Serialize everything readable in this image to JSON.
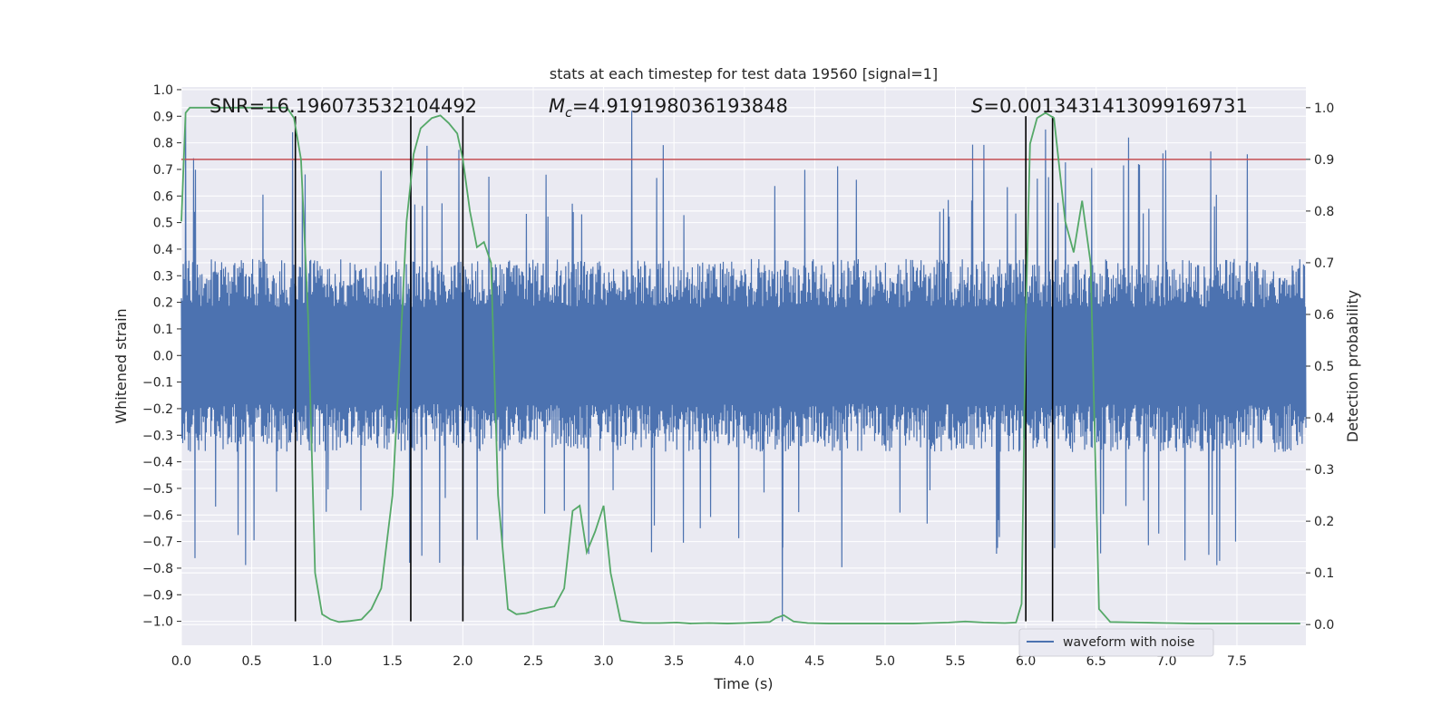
{
  "chart_data": {
    "type": "line",
    "title": "stats at each timestep for test data 19560 [signal=1]",
    "xlabel": "Time (s)",
    "ylabel_left": "Whitened strain",
    "ylabel_right": "Detection probability",
    "xlim": [
      0.0,
      7.99
    ],
    "ylim_left": [
      -1.09,
      1.01
    ],
    "ylim_right": [
      -0.04,
      1.04
    ],
    "x_ticks": [
      "0.0",
      "0.5",
      "1.0",
      "1.5",
      "2.0",
      "2.5",
      "3.0",
      "3.5",
      "4.0",
      "4.5",
      "5.0",
      "5.5",
      "6.0",
      "6.5",
      "7.0",
      "7.5"
    ],
    "y_left_ticks": [
      "1.0",
      "0.9",
      "0.8",
      "0.7",
      "0.6",
      "0.5",
      "0.4",
      "0.3",
      "0.2",
      "0.1",
      "0.0",
      "−0.1",
      "−0.2",
      "−0.3",
      "−0.4",
      "−0.5",
      "−0.6",
      "−0.7",
      "−0.8",
      "−0.9",
      "−1.0"
    ],
    "y_right_ticks": [
      "1.0",
      "0.9",
      "0.8",
      "0.7",
      "0.6",
      "0.5",
      "0.4",
      "0.3",
      "0.2",
      "0.1",
      "0.0"
    ],
    "grid": true,
    "legend": {
      "position": "bottom-right",
      "entries": [
        "waveform with noise"
      ]
    },
    "annotations": {
      "snr": "SNR=16.196073532104492",
      "mc_symbol": "M",
      "mc_sub": "c",
      "mc_value": "=4.919198036193848",
      "s_symbol": "S",
      "s_value": "=0.0013431413099169731"
    },
    "threshold": 0.9,
    "vlines": [
      0.81,
      1.63,
      2.0,
      6.0,
      6.19
    ],
    "vline_ymin": -1.0,
    "vline_ymax": 0.9,
    "waveform": {
      "name": "waveform with noise",
      "samples_approx": 2400,
      "typical_abs": 0.33,
      "max": 0.92,
      "min": -1.0,
      "notable_peaks": [
        [
          0.03,
          0.9
        ],
        [
          0.79,
          0.84
        ],
        [
          1.63,
          0.75
        ],
        [
          3.2,
          0.92
        ],
        [
          4.27,
          -1.0
        ],
        [
          6.14,
          0.85
        ],
        [
          6.73,
          0.82
        ],
        [
          7.3,
          -0.75
        ]
      ]
    },
    "detection_probability": {
      "x": [
        0.0,
        0.03,
        0.06,
        0.12,
        0.2,
        0.3,
        0.4,
        0.5,
        0.6,
        0.7,
        0.75,
        0.8,
        0.85,
        0.9,
        0.95,
        1.0,
        1.06,
        1.12,
        1.2,
        1.28,
        1.35,
        1.42,
        1.5,
        1.55,
        1.6,
        1.65,
        1.7,
        1.78,
        1.84,
        1.9,
        1.96,
        2.0,
        2.05,
        2.1,
        2.15,
        2.2,
        2.25,
        2.32,
        2.38,
        2.45,
        2.55,
        2.65,
        2.72,
        2.78,
        2.83,
        2.88,
        2.94,
        3.0,
        3.05,
        3.12,
        3.2,
        3.28,
        3.4,
        3.52,
        3.62,
        3.75,
        3.88,
        4.0,
        4.18,
        4.22,
        4.28,
        4.35,
        4.45,
        4.6,
        4.8,
        5.0,
        5.2,
        5.45,
        5.57,
        5.7,
        5.85,
        5.93,
        5.97,
        6.0,
        6.03,
        6.08,
        6.14,
        6.2,
        6.28,
        6.34,
        6.4,
        6.46,
        6.52,
        6.6,
        6.8,
        7.0,
        7.2,
        7.4,
        7.6,
        7.8,
        7.95
      ],
      "y": [
        0.78,
        0.99,
        1.0,
        1.0,
        1.0,
        1.0,
        1.0,
        1.0,
        1.0,
        1.0,
        1.0,
        0.98,
        0.9,
        0.6,
        0.1,
        0.02,
        0.01,
        0.005,
        0.007,
        0.01,
        0.03,
        0.07,
        0.25,
        0.5,
        0.78,
        0.91,
        0.96,
        0.98,
        0.985,
        0.97,
        0.95,
        0.9,
        0.8,
        0.73,
        0.74,
        0.7,
        0.25,
        0.03,
        0.02,
        0.022,
        0.03,
        0.035,
        0.07,
        0.22,
        0.23,
        0.14,
        0.18,
        0.23,
        0.1,
        0.008,
        0.005,
        0.003,
        0.003,
        0.004,
        0.002,
        0.003,
        0.002,
        0.003,
        0.005,
        0.012,
        0.018,
        0.006,
        0.003,
        0.002,
        0.002,
        0.002,
        0.002,
        0.004,
        0.006,
        0.004,
        0.003,
        0.004,
        0.04,
        0.6,
        0.93,
        0.98,
        0.99,
        0.98,
        0.78,
        0.72,
        0.82,
        0.7,
        0.03,
        0.005,
        0.004,
        0.003,
        0.002,
        0.002,
        0.002,
        0.002,
        0.002
      ]
    },
    "colors": {
      "waveform": "#4c72b0",
      "probability": "#55a868",
      "threshold": "#c44e52",
      "vline": "#000000",
      "plot_bg": "#eaeaf2",
      "grid": "#ffffff"
    }
  }
}
